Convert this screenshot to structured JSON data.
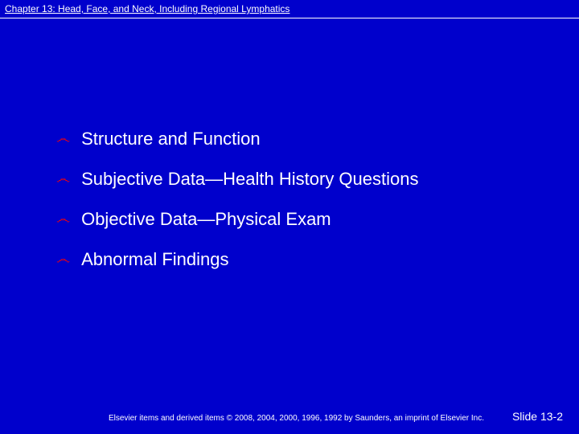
{
  "header": {
    "title": "Chapter 13: Head, Face, and Neck, Including Regional Lymphatics"
  },
  "bullets": {
    "glyph": "෴",
    "glyph_color": "#ff0000",
    "text_color": "#ffffff",
    "items": [
      {
        "text": "Structure and Function"
      },
      {
        "text": "Subjective Data—Health History Questions"
      },
      {
        "text": "Objective Data—Physical Exam"
      },
      {
        "text": "Abnormal Findings"
      }
    ]
  },
  "footer": {
    "copyright": "Elsevier items and derived items © 2008, 2004, 2000, 1996, 1992 by Saunders, an imprint of Elsevier Inc.",
    "slide_label": "Slide 13-2"
  },
  "style": {
    "background_color": "#0000cc",
    "header_font_size": 12,
    "bullet_font_size": 22,
    "copyright_font_size": 10,
    "slide_font_size": 14
  }
}
